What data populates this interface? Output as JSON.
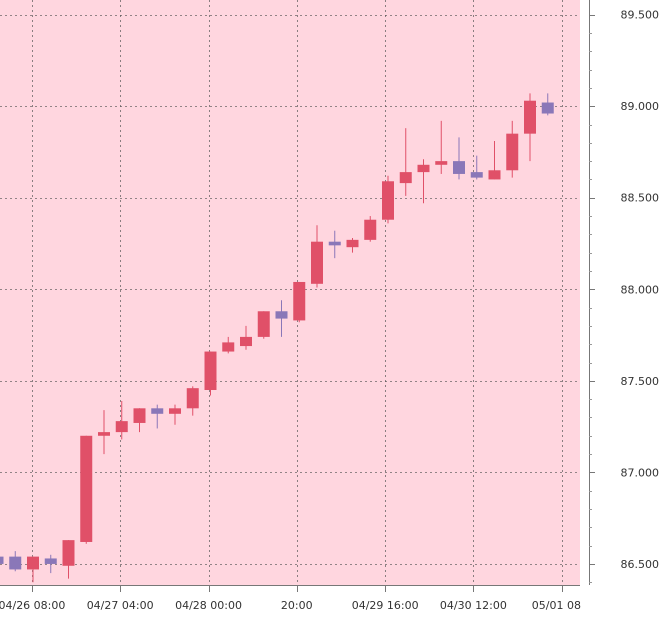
{
  "chart_data": {
    "type": "candlestick",
    "colors": {
      "background": "#ffd6df",
      "up": "#e05068",
      "down": "#8a77b8",
      "grid": "#555555",
      "axis_text": "#333333"
    },
    "grid": true,
    "y_ticks": [
      "86.500",
      "87.000",
      "87.500",
      "88.000",
      "88.500",
      "89.000",
      "89.500"
    ],
    "y_tick_values": [
      86.5,
      87.0,
      87.5,
      88.0,
      88.5,
      89.0,
      89.5
    ],
    "ylim": [
      86.385,
      89.58
    ],
    "x_tick_labels": [
      "04/26 08:00",
      "04/27 04:00",
      "04/28 00:00",
      "20:00",
      "04/29 16:00",
      "04/30 12:00",
      "05/01 08"
    ],
    "x_tick_index": [
      1.94,
      6.91,
      11.89,
      16.86,
      21.84,
      26.81,
      31.79
    ],
    "candles": [
      {
        "o": 86.54,
        "h": 86.54,
        "l": 86.48,
        "c": 86.5
      },
      {
        "o": 86.54,
        "h": 86.57,
        "l": 86.46,
        "c": 86.47
      },
      {
        "o": 86.47,
        "h": 86.54,
        "l": 86.4,
        "c": 86.54
      },
      {
        "o": 86.53,
        "h": 86.55,
        "l": 86.45,
        "c": 86.5
      },
      {
        "o": 86.49,
        "h": 86.63,
        "l": 86.42,
        "c": 86.63
      },
      {
        "o": 86.62,
        "h": 87.2,
        "l": 86.61,
        "c": 87.2
      },
      {
        "o": 87.2,
        "h": 87.34,
        "l": 87.1,
        "c": 87.22
      },
      {
        "o": 87.22,
        "h": 87.39,
        "l": 87.18,
        "c": 87.28
      },
      {
        "o": 87.27,
        "h": 87.35,
        "l": 87.22,
        "c": 87.35
      },
      {
        "o": 87.35,
        "h": 87.37,
        "l": 87.24,
        "c": 87.32
      },
      {
        "o": 87.32,
        "h": 87.37,
        "l": 87.26,
        "c": 87.35
      },
      {
        "o": 87.35,
        "h": 87.47,
        "l": 87.31,
        "c": 87.46
      },
      {
        "o": 87.45,
        "h": 87.66,
        "l": 87.42,
        "c": 87.66
      },
      {
        "o": 87.66,
        "h": 87.74,
        "l": 87.65,
        "c": 87.71
      },
      {
        "o": 87.69,
        "h": 87.8,
        "l": 87.67,
        "c": 87.74
      },
      {
        "o": 87.74,
        "h": 87.88,
        "l": 87.73,
        "c": 87.88
      },
      {
        "o": 87.88,
        "h": 87.94,
        "l": 87.74,
        "c": 87.84
      },
      {
        "o": 87.83,
        "h": 88.04,
        "l": 87.82,
        "c": 88.04
      },
      {
        "o": 88.03,
        "h": 88.35,
        "l": 88.01,
        "c": 88.26
      },
      {
        "o": 88.26,
        "h": 88.32,
        "l": 88.17,
        "c": 88.24
      },
      {
        "o": 88.23,
        "h": 88.28,
        "l": 88.2,
        "c": 88.27
      },
      {
        "o": 88.27,
        "h": 88.4,
        "l": 88.26,
        "c": 88.38
      },
      {
        "o": 88.38,
        "h": 88.62,
        "l": 88.36,
        "c": 88.59
      },
      {
        "o": 88.58,
        "h": 88.88,
        "l": 88.51,
        "c": 88.64
      },
      {
        "o": 88.64,
        "h": 88.71,
        "l": 88.47,
        "c": 88.68
      },
      {
        "o": 88.68,
        "h": 88.92,
        "l": 88.63,
        "c": 88.7
      },
      {
        "o": 88.7,
        "h": 88.83,
        "l": 88.6,
        "c": 88.63
      },
      {
        "o": 88.64,
        "h": 88.73,
        "l": 88.6,
        "c": 88.61
      },
      {
        "o": 88.6,
        "h": 88.81,
        "l": 88.6,
        "c": 88.65
      },
      {
        "o": 88.65,
        "h": 88.92,
        "l": 88.61,
        "c": 88.85
      },
      {
        "o": 88.85,
        "h": 89.07,
        "l": 88.7,
        "c": 89.03
      },
      {
        "o": 89.02,
        "h": 89.07,
        "l": 88.95,
        "c": 88.96
      }
    ]
  }
}
